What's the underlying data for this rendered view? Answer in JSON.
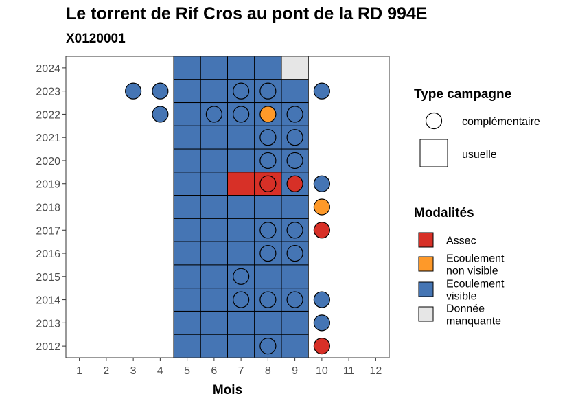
{
  "chart_data": {
    "type": "heatmap",
    "title": "Le torrent de Rif Cros au pont de la RD 994E",
    "subtitle": "X0120001",
    "xlabel": "Mois",
    "ylabel": "",
    "x_ticks": [
      1,
      2,
      3,
      4,
      5,
      6,
      7,
      8,
      9,
      10,
      11,
      12
    ],
    "y_ticks": [
      2012,
      2013,
      2014,
      2015,
      2016,
      2017,
      2018,
      2019,
      2020,
      2021,
      2022,
      2023,
      2024
    ],
    "xlim": [
      0.5,
      12.5
    ],
    "ylim": [
      2011.5,
      2024.5
    ],
    "grid": false,
    "legend_position": "right",
    "colors": {
      "Assec": "#d73027",
      "Ecoulement non visible": "#fe9929",
      "Ecoulement visible": "#4575b4",
      "Donnée manquante": "#e6e6e6"
    },
    "usuelle": [
      {
        "year": 2024,
        "month": 5,
        "modalite": "Ecoulement visible"
      },
      {
        "year": 2024,
        "month": 6,
        "modalite": "Ecoulement visible"
      },
      {
        "year": 2024,
        "month": 7,
        "modalite": "Ecoulement visible"
      },
      {
        "year": 2024,
        "month": 8,
        "modalite": "Ecoulement visible"
      },
      {
        "year": 2024,
        "month": 9,
        "modalite": "Donnée manquante"
      },
      {
        "year": 2023,
        "month": 5,
        "modalite": "Ecoulement visible"
      },
      {
        "year": 2023,
        "month": 6,
        "modalite": "Ecoulement visible"
      },
      {
        "year": 2023,
        "month": 7,
        "modalite": "Ecoulement visible"
      },
      {
        "year": 2023,
        "month": 8,
        "modalite": "Ecoulement visible"
      },
      {
        "year": 2023,
        "month": 9,
        "modalite": "Ecoulement visible"
      },
      {
        "year": 2022,
        "month": 5,
        "modalite": "Ecoulement visible"
      },
      {
        "year": 2022,
        "month": 6,
        "modalite": "Ecoulement visible"
      },
      {
        "year": 2022,
        "month": 7,
        "modalite": "Ecoulement visible"
      },
      {
        "year": 2022,
        "month": 8,
        "modalite": "Ecoulement visible"
      },
      {
        "year": 2022,
        "month": 9,
        "modalite": "Ecoulement visible"
      },
      {
        "year": 2021,
        "month": 5,
        "modalite": "Ecoulement visible"
      },
      {
        "year": 2021,
        "month": 6,
        "modalite": "Ecoulement visible"
      },
      {
        "year": 2021,
        "month": 7,
        "modalite": "Ecoulement visible"
      },
      {
        "year": 2021,
        "month": 8,
        "modalite": "Ecoulement visible"
      },
      {
        "year": 2021,
        "month": 9,
        "modalite": "Ecoulement visible"
      },
      {
        "year": 2020,
        "month": 5,
        "modalite": "Ecoulement visible"
      },
      {
        "year": 2020,
        "month": 6,
        "modalite": "Ecoulement visible"
      },
      {
        "year": 2020,
        "month": 7,
        "modalite": "Ecoulement visible"
      },
      {
        "year": 2020,
        "month": 8,
        "modalite": "Ecoulement visible"
      },
      {
        "year": 2020,
        "month": 9,
        "modalite": "Ecoulement visible"
      },
      {
        "year": 2019,
        "month": 5,
        "modalite": "Ecoulement visible"
      },
      {
        "year": 2019,
        "month": 6,
        "modalite": "Ecoulement visible"
      },
      {
        "year": 2019,
        "month": 7,
        "modalite": "Assec"
      },
      {
        "year": 2019,
        "month": 8,
        "modalite": "Assec"
      },
      {
        "year": 2019,
        "month": 9,
        "modalite": "Ecoulement visible"
      },
      {
        "year": 2018,
        "month": 5,
        "modalite": "Ecoulement visible"
      },
      {
        "year": 2018,
        "month": 6,
        "modalite": "Ecoulement visible"
      },
      {
        "year": 2018,
        "month": 7,
        "modalite": "Ecoulement visible"
      },
      {
        "year": 2018,
        "month": 8,
        "modalite": "Ecoulement visible"
      },
      {
        "year": 2018,
        "month": 9,
        "modalite": "Ecoulement visible"
      },
      {
        "year": 2017,
        "month": 5,
        "modalite": "Ecoulement visible"
      },
      {
        "year": 2017,
        "month": 6,
        "modalite": "Ecoulement visible"
      },
      {
        "year": 2017,
        "month": 7,
        "modalite": "Ecoulement visible"
      },
      {
        "year": 2017,
        "month": 8,
        "modalite": "Ecoulement visible"
      },
      {
        "year": 2017,
        "month": 9,
        "modalite": "Ecoulement visible"
      },
      {
        "year": 2016,
        "month": 5,
        "modalite": "Ecoulement visible"
      },
      {
        "year": 2016,
        "month": 6,
        "modalite": "Ecoulement visible"
      },
      {
        "year": 2016,
        "month": 7,
        "modalite": "Ecoulement visible"
      },
      {
        "year": 2016,
        "month": 8,
        "modalite": "Ecoulement visible"
      },
      {
        "year": 2016,
        "month": 9,
        "modalite": "Ecoulement visible"
      },
      {
        "year": 2015,
        "month": 5,
        "modalite": "Ecoulement visible"
      },
      {
        "year": 2015,
        "month": 6,
        "modalite": "Ecoulement visible"
      },
      {
        "year": 2015,
        "month": 7,
        "modalite": "Ecoulement visible"
      },
      {
        "year": 2015,
        "month": 8,
        "modalite": "Ecoulement visible"
      },
      {
        "year": 2015,
        "month": 9,
        "modalite": "Ecoulement visible"
      },
      {
        "year": 2014,
        "month": 5,
        "modalite": "Ecoulement visible"
      },
      {
        "year": 2014,
        "month": 6,
        "modalite": "Ecoulement visible"
      },
      {
        "year": 2014,
        "month": 7,
        "modalite": "Ecoulement visible"
      },
      {
        "year": 2014,
        "month": 8,
        "modalite": "Ecoulement visible"
      },
      {
        "year": 2014,
        "month": 9,
        "modalite": "Ecoulement visible"
      },
      {
        "year": 2013,
        "month": 5,
        "modalite": "Ecoulement visible"
      },
      {
        "year": 2013,
        "month": 6,
        "modalite": "Ecoulement visible"
      },
      {
        "year": 2013,
        "month": 7,
        "modalite": "Ecoulement visible"
      },
      {
        "year": 2013,
        "month": 8,
        "modalite": "Ecoulement visible"
      },
      {
        "year": 2013,
        "month": 9,
        "modalite": "Ecoulement visible"
      },
      {
        "year": 2012,
        "month": 5,
        "modalite": "Ecoulement visible"
      },
      {
        "year": 2012,
        "month": 6,
        "modalite": "Ecoulement visible"
      },
      {
        "year": 2012,
        "month": 7,
        "modalite": "Ecoulement visible"
      },
      {
        "year": 2012,
        "month": 8,
        "modalite": "Ecoulement visible"
      },
      {
        "year": 2012,
        "month": 9,
        "modalite": "Ecoulement visible"
      }
    ],
    "complementaire": [
      {
        "year": 2023,
        "month": 3,
        "modalite": "Ecoulement visible"
      },
      {
        "year": 2023,
        "month": 4,
        "modalite": "Ecoulement visible"
      },
      {
        "year": 2023,
        "month": 7,
        "modalite": "Ecoulement visible"
      },
      {
        "year": 2023,
        "month": 8,
        "modalite": "Ecoulement visible"
      },
      {
        "year": 2023,
        "month": 10,
        "modalite": "Ecoulement visible"
      },
      {
        "year": 2022,
        "month": 4,
        "modalite": "Ecoulement visible"
      },
      {
        "year": 2022,
        "month": 6,
        "modalite": "Ecoulement visible"
      },
      {
        "year": 2022,
        "month": 7,
        "modalite": "Ecoulement visible"
      },
      {
        "year": 2022,
        "month": 8,
        "modalite": "Ecoulement non visible"
      },
      {
        "year": 2022,
        "month": 9,
        "modalite": "Ecoulement visible"
      },
      {
        "year": 2021,
        "month": 8,
        "modalite": "Ecoulement visible"
      },
      {
        "year": 2021,
        "month": 9,
        "modalite": "Ecoulement visible"
      },
      {
        "year": 2020,
        "month": 8,
        "modalite": "Ecoulement visible"
      },
      {
        "year": 2020,
        "month": 9,
        "modalite": "Ecoulement visible"
      },
      {
        "year": 2019,
        "month": 8,
        "modalite": "Assec"
      },
      {
        "year": 2019,
        "month": 9,
        "modalite": "Assec"
      },
      {
        "year": 2019,
        "month": 10,
        "modalite": "Ecoulement visible"
      },
      {
        "year": 2018,
        "month": 10,
        "modalite": "Ecoulement non visible"
      },
      {
        "year": 2017,
        "month": 8,
        "modalite": "Ecoulement visible"
      },
      {
        "year": 2017,
        "month": 9,
        "modalite": "Ecoulement visible"
      },
      {
        "year": 2017,
        "month": 10,
        "modalite": "Assec"
      },
      {
        "year": 2016,
        "month": 8,
        "modalite": "Ecoulement visible"
      },
      {
        "year": 2016,
        "month": 9,
        "modalite": "Ecoulement visible"
      },
      {
        "year": 2015,
        "month": 7,
        "modalite": "Ecoulement visible"
      },
      {
        "year": 2014,
        "month": 7,
        "modalite": "Ecoulement visible"
      },
      {
        "year": 2014,
        "month": 8,
        "modalite": "Ecoulement visible"
      },
      {
        "year": 2014,
        "month": 9,
        "modalite": "Ecoulement visible"
      },
      {
        "year": 2014,
        "month": 10,
        "modalite": "Ecoulement visible"
      },
      {
        "year": 2013,
        "month": 10,
        "modalite": "Ecoulement visible"
      },
      {
        "year": 2012,
        "month": 8,
        "modalite": "Ecoulement visible"
      },
      {
        "year": 2012,
        "month": 10,
        "modalite": "Assec"
      }
    ]
  },
  "legend": {
    "type_title": "Type campagne",
    "type_items": [
      {
        "key": "complementaire",
        "label": "complémentaire",
        "shape": "circle"
      },
      {
        "key": "usuelle",
        "label": "usuelle",
        "shape": "square"
      }
    ],
    "mod_title": "Modalités",
    "mod_items": [
      {
        "key": "Assec",
        "lines": [
          "Assec"
        ],
        "color": "#d73027"
      },
      {
        "key": "Ecoulement non visible",
        "lines": [
          "Ecoulement",
          "non visible"
        ],
        "color": "#fe9929"
      },
      {
        "key": "Ecoulement visible",
        "lines": [
          "Ecoulement",
          "visible"
        ],
        "color": "#4575b4"
      },
      {
        "key": "Donnée manquante",
        "lines": [
          "Donnée",
          "manquante"
        ],
        "color": "#e6e6e6"
      }
    ]
  }
}
